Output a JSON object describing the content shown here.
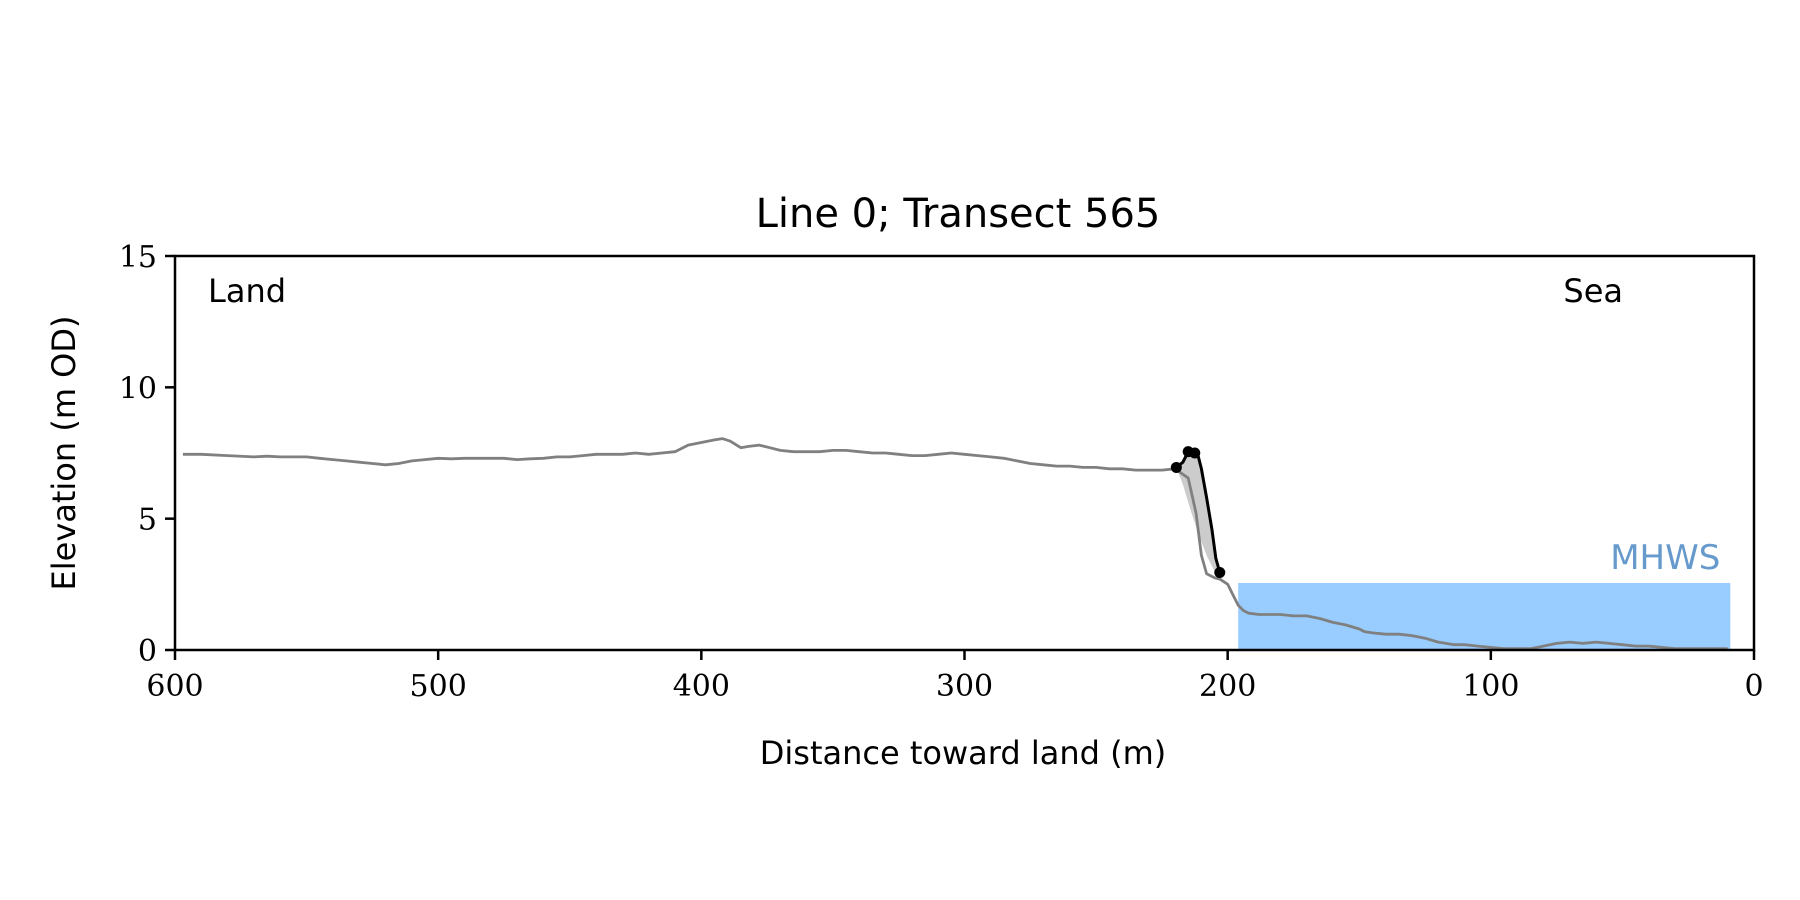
{
  "chart_data": {
    "type": "line",
    "title": "Line 0; Transect 565",
    "xlabel": "Distance toward land (m)",
    "ylabel": "Elevation (m OD)",
    "xlim": [
      600,
      0
    ],
    "ylim": [
      0,
      15
    ],
    "x_ticks": [
      600,
      500,
      400,
      300,
      200,
      100,
      0
    ],
    "y_ticks": [
      0,
      5,
      10,
      15
    ],
    "grid": false,
    "annotations": {
      "land": "Land",
      "sea": "Sea",
      "mhws": "MHWS"
    },
    "mhws": {
      "elevation": 2.55,
      "x_range": [
        196,
        9
      ],
      "color": "#99ccff",
      "label_color": "#6699cc"
    },
    "series": [
      {
        "role": "profile",
        "color": "#808080",
        "x": [
          597,
          590,
          580,
          570,
          565,
          560,
          550,
          545,
          540,
          535,
          530,
          525,
          520,
          515,
          510,
          505,
          500,
          495,
          490,
          485,
          480,
          475,
          470,
          465,
          460,
          455,
          450,
          445,
          440,
          435,
          430,
          425,
          420,
          415,
          410,
          405,
          400,
          395,
          392,
          389,
          385,
          382,
          378,
          374,
          370,
          365,
          360,
          355,
          350,
          345,
          340,
          335,
          330,
          325,
          320,
          315,
          310,
          305,
          300,
          295,
          290,
          285,
          280,
          275,
          270,
          265,
          260,
          255,
          250,
          245,
          240,
          235,
          230,
          225,
          220,
          215,
          212,
          210,
          208,
          205,
          203,
          200,
          198,
          196,
          194,
          192,
          188,
          184,
          180,
          175,
          170,
          165,
          160,
          155,
          150,
          148,
          145,
          140,
          135,
          130,
          125,
          120,
          117,
          114,
          110,
          105,
          100,
          95,
          90,
          85,
          80,
          75,
          70,
          65,
          60,
          55,
          50,
          45,
          40,
          35,
          30,
          25,
          20,
          15,
          10
        ],
        "y": [
          7.45,
          7.45,
          7.4,
          7.35,
          7.38,
          7.35,
          7.35,
          7.3,
          7.25,
          7.2,
          7.15,
          7.1,
          7.05,
          7.1,
          7.2,
          7.25,
          7.3,
          7.28,
          7.3,
          7.3,
          7.3,
          7.3,
          7.25,
          7.28,
          7.3,
          7.35,
          7.35,
          7.4,
          7.45,
          7.45,
          7.45,
          7.5,
          7.45,
          7.5,
          7.55,
          7.8,
          7.9,
          8.0,
          8.05,
          7.95,
          7.7,
          7.75,
          7.8,
          7.7,
          7.6,
          7.55,
          7.55,
          7.55,
          7.6,
          7.6,
          7.55,
          7.5,
          7.5,
          7.45,
          7.4,
          7.4,
          7.45,
          7.5,
          7.45,
          7.4,
          7.35,
          7.3,
          7.2,
          7.1,
          7.05,
          7.0,
          7.0,
          6.95,
          6.95,
          6.9,
          6.9,
          6.85,
          6.85,
          6.85,
          6.9,
          6.55,
          5.2,
          3.6,
          2.9,
          2.75,
          2.7,
          2.5,
          2.1,
          1.7,
          1.5,
          1.4,
          1.35,
          1.35,
          1.35,
          1.3,
          1.3,
          1.2,
          1.05,
          0.95,
          0.8,
          0.7,
          0.65,
          0.6,
          0.6,
          0.55,
          0.45,
          0.3,
          0.25,
          0.2,
          0.2,
          0.15,
          0.1,
          0.05,
          0.05,
          0.05,
          0.15,
          0.25,
          0.3,
          0.25,
          0.3,
          0.25,
          0.2,
          0.15,
          0.15,
          0.1,
          0.05,
          0.05,
          0.05,
          0.05,
          0.05
        ]
      },
      {
        "role": "cliff",
        "color": "#000000",
        "x": [
          219.5,
          217,
          215,
          213,
          211.5,
          210,
          208,
          206,
          204.5,
          203
        ],
        "y": [
          6.95,
          7.15,
          7.55,
          7.6,
          7.5,
          6.9,
          5.8,
          4.6,
          3.5,
          2.95
        ]
      }
    ],
    "cliff_points": {
      "color": "#000000",
      "x": [
        219.5,
        215,
        212.5,
        203
      ],
      "y": [
        6.95,
        7.55,
        7.5,
        2.95
      ]
    },
    "cliff_fill": {
      "color": "#cccccc",
      "x": [
        219.5,
        217,
        215,
        213,
        211.5,
        210,
        208,
        206,
        204.5,
        203,
        205,
        208,
        211,
        214,
        217,
        219.5
      ],
      "y": [
        6.95,
        7.15,
        7.55,
        7.6,
        7.5,
        6.9,
        5.8,
        4.6,
        3.5,
        2.95,
        3.0,
        3.6,
        4.4,
        5.3,
        6.3,
        6.95
      ]
    }
  }
}
